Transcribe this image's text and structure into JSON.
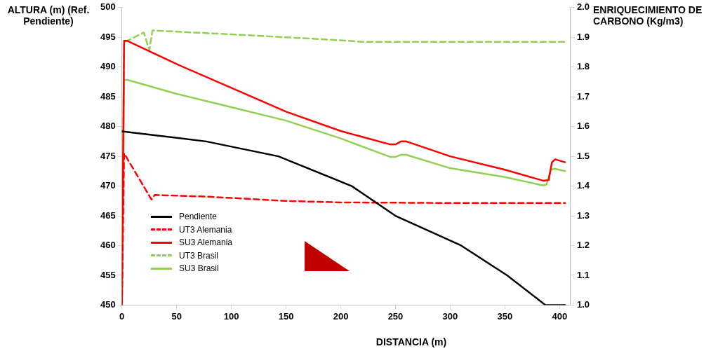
{
  "chart_data": {
    "type": "line",
    "xlabel": "DISTANCIA (m)",
    "ylabel": "ALTURA (m) (Ref. Pendiente)",
    "y2label": "ENRIQUECIMIENTO DE CARBONO (Kg/m3)",
    "xlim": [
      0,
      410
    ],
    "xticks": [
      0,
      50,
      100,
      150,
      200,
      250,
      300,
      350,
      400
    ],
    "ylim": [
      450,
      500
    ],
    "yticks": [
      450,
      455,
      460,
      465,
      470,
      475,
      480,
      485,
      490,
      495,
      500
    ],
    "y2lim": [
      1.0,
      2.0
    ],
    "y2ticks": [
      {
        "value": 1.0,
        "label": "1.0"
      },
      {
        "value": 1.1,
        "label": "1.1"
      },
      {
        "value": 1.2,
        "label": "1.2"
      },
      {
        "value": 1.3,
        "label": "1.3"
      },
      {
        "value": 1.4,
        "label": "1.4"
      },
      {
        "value": 1.5,
        "label": "1.5"
      },
      {
        "value": 1.6,
        "label": "1.6"
      },
      {
        "value": 1.7,
        "label": "1.7"
      },
      {
        "value": 1.8,
        "label": "1.8"
      },
      {
        "value": 1.9,
        "label": "1.9"
      },
      {
        "value": 2.0,
        "label": "2.0"
      }
    ],
    "grid": false,
    "legend": "left",
    "marker": "none",
    "series": [
      {
        "name": "Pendiente",
        "color": "#000000",
        "line_style": "solid",
        "x": [
          0,
          77,
          143,
          210,
          250,
          310,
          352,
          387,
          405
        ],
        "values": [
          479.2,
          477.5,
          475,
          470,
          465,
          460,
          455,
          450,
          450
        ]
      },
      {
        "name": "UT3 Alemania",
        "color": "#ff0000",
        "line_style": "dashed",
        "axis": "y2",
        "x": [
          0,
          2,
          27,
          30,
          80,
          150,
          200,
          300,
          405
        ],
        "values": [
          1.0,
          1.51,
          1.355,
          1.37,
          1.364,
          1.35,
          1.345,
          1.343,
          1.343
        ]
      },
      {
        "name": "SU3 Alemania",
        "color": "#ff0000",
        "line_style": "solid",
        "axis": "y2",
        "x": [
          0,
          2,
          5,
          50,
          100,
          150,
          200,
          245,
          250,
          255,
          260,
          300,
          350,
          385,
          390,
          393,
          396,
          405
        ],
        "values": [
          1.0,
          1.888,
          1.888,
          1.81,
          1.73,
          1.65,
          1.585,
          1.54,
          1.54,
          1.55,
          1.55,
          1.5,
          1.455,
          1.418,
          1.42,
          1.48,
          1.49,
          1.48
        ]
      },
      {
        "name": "UT3 Brasil",
        "color": "#92d050",
        "line_style": "dashed",
        "axis": "y2",
        "x": [
          0,
          2,
          20,
          25,
          28,
          100,
          200,
          220,
          300,
          405
        ],
        "values": [
          1.0,
          1.883,
          1.916,
          1.857,
          1.923,
          1.91,
          1.89,
          1.885,
          1.885,
          1.885
        ]
      },
      {
        "name": "SU3 Brasil",
        "color": "#92d050",
        "line_style": "solid",
        "axis": "y2",
        "x": [
          0,
          2,
          5,
          50,
          100,
          150,
          200,
          245,
          250,
          255,
          260,
          300,
          350,
          385,
          388,
          392,
          396,
          405
        ],
        "values": [
          1.0,
          1.757,
          1.757,
          1.71,
          1.665,
          1.62,
          1.56,
          1.498,
          1.498,
          1.505,
          1.505,
          1.46,
          1.43,
          1.402,
          1.405,
          1.456,
          1.458,
          1.45
        ]
      }
    ]
  }
}
